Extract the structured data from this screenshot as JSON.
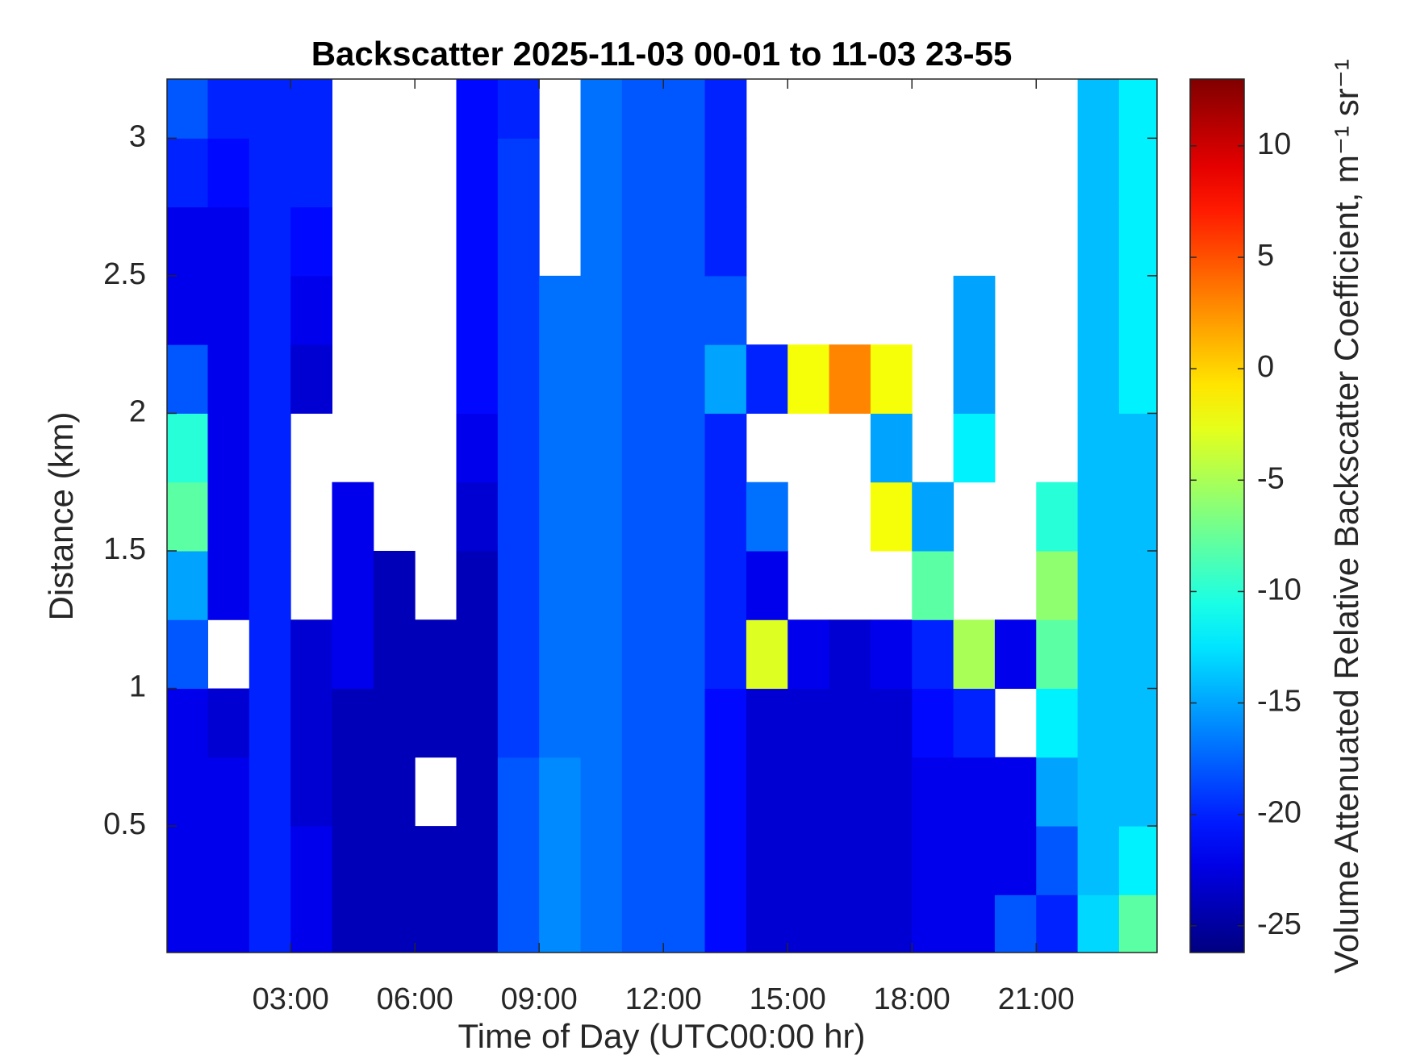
{
  "chart_data": {
    "type": "heatmap",
    "title": "Backscatter 2025-11-03 00-01 to 11-03 23-55",
    "x_label": "Time of Day (UTC00:00 hr)",
    "y_label": "Distance (km)",
    "colorbar_label": "Volume Attenuated Relative Backscatter Coefficient, m⁻¹ sr⁻¹",
    "colormap": "jet",
    "x": [
      0.5,
      1.5,
      2.5,
      3.5,
      4.5,
      5.5,
      6.5,
      7.5,
      8.5,
      9.5,
      10.5,
      11.5,
      12.5,
      13.5,
      14.5,
      15.5,
      16.5,
      17.5,
      18.5,
      19.5,
      20.5,
      21.5,
      22.5,
      23.5
    ],
    "y": [
      0.125,
      0.375,
      0.625,
      0.875,
      1.125,
      1.375,
      1.625,
      1.875,
      2.125,
      2.375,
      2.625,
      2.875,
      3.125
    ],
    "z": [
      [
        -22,
        -22,
        -20,
        -22,
        -24,
        -24,
        -24,
        -24,
        -18,
        -16,
        -17,
        -18,
        -18,
        -21,
        -23,
        -23,
        -23,
        -23,
        -22,
        -22,
        -18,
        -20,
        -13,
        -8
      ],
      [
        -22,
        -22,
        -20,
        -22,
        -24,
        -24,
        -24,
        -24,
        -18,
        -16,
        -17,
        -18,
        -18,
        -21,
        -23,
        -23,
        -23,
        -23,
        -22,
        -22,
        -22,
        -18,
        -14,
        -12
      ],
      [
        -22,
        -22,
        -20,
        -23,
        -24,
        -24,
        null,
        -24,
        -18,
        -16,
        -17,
        -18,
        -18,
        -21,
        -23,
        -23,
        -23,
        -23,
        -22,
        -22,
        -22,
        -15,
        -14,
        -14
      ],
      [
        -22,
        -23,
        -20,
        -23,
        -24,
        -24,
        -24,
        -24,
        -19,
        -17,
        -17,
        -18,
        -18,
        -21,
        -23,
        -23,
        -23,
        -23,
        -21,
        -20,
        null,
        -12,
        -14,
        -14
      ],
      [
        -18,
        null,
        -20,
        -23,
        -22,
        -24,
        -24,
        -24,
        -19,
        -17,
        -17,
        -18,
        -18,
        -20,
        -3,
        -22,
        -23,
        -22,
        -20,
        -5,
        -22,
        -8,
        -14,
        -14
      ],
      [
        -15,
        -22,
        -20,
        null,
        -22,
        -24,
        null,
        -24,
        -19,
        -17,
        -17,
        -18,
        -18,
        -20,
        -22,
        null,
        null,
        null,
        -8,
        null,
        null,
        -6,
        -14,
        -14
      ],
      [
        -8,
        -22,
        -20,
        null,
        -22,
        null,
        null,
        -23,
        -19,
        -17,
        -17,
        -18,
        -18,
        -20,
        -17,
        null,
        null,
        -2,
        -15,
        null,
        null,
        -10,
        -14,
        -14
      ],
      [
        -10,
        -22,
        -20,
        null,
        null,
        null,
        null,
        -22,
        -19,
        -17,
        -17,
        -18,
        -18,
        -20,
        null,
        null,
        null,
        -15,
        null,
        -12,
        null,
        null,
        -14,
        -14
      ],
      [
        -18,
        -22,
        -20,
        -23,
        null,
        null,
        null,
        -21,
        -19,
        -17,
        -17,
        -18,
        -18,
        -15,
        -20,
        -2,
        3,
        -2,
        null,
        -15,
        null,
        null,
        -14,
        -12
      ],
      [
        -22,
        -22,
        -20,
        -22,
        null,
        null,
        null,
        -21,
        -19,
        -17,
        -17,
        -18,
        -18,
        -18,
        null,
        null,
        null,
        null,
        null,
        -15,
        null,
        null,
        -14,
        -12
      ],
      [
        -22,
        -22,
        -20,
        -21,
        null,
        null,
        null,
        -21,
        -19,
        null,
        -17,
        -18,
        -18,
        -20,
        null,
        null,
        null,
        null,
        null,
        null,
        null,
        null,
        -14,
        -12
      ],
      [
        -20,
        -21,
        -20,
        -20,
        null,
        null,
        null,
        -21,
        -19,
        null,
        -17,
        -18,
        -18,
        -20,
        null,
        null,
        null,
        null,
        null,
        null,
        null,
        null,
        -14,
        -12
      ],
      [
        -18,
        -20,
        -20,
        -20,
        null,
        null,
        null,
        -21,
        -20,
        null,
        -17,
        -18,
        -18,
        -20,
        null,
        null,
        null,
        null,
        null,
        null,
        null,
        null,
        -14,
        -12
      ]
    ],
    "xlim": [
      0.0167,
      23.917
    ],
    "xticks": [
      {
        "value": 3,
        "label": "03:00"
      },
      {
        "value": 6,
        "label": "06:00"
      },
      {
        "value": 9,
        "label": "09:00"
      },
      {
        "value": 12,
        "label": "12:00"
      },
      {
        "value": 15,
        "label": "15:00"
      },
      {
        "value": 18,
        "label": "18:00"
      },
      {
        "value": 21,
        "label": "21:00"
      }
    ],
    "ylim": [
      0.04,
      3.215
    ],
    "yticks": [
      0.5,
      1,
      1.5,
      2,
      2.5,
      3
    ],
    "clim": [
      -26.2,
      13
    ],
    "cticks": [
      -25,
      -20,
      -15,
      -10,
      -5,
      0,
      5,
      10
    ]
  }
}
